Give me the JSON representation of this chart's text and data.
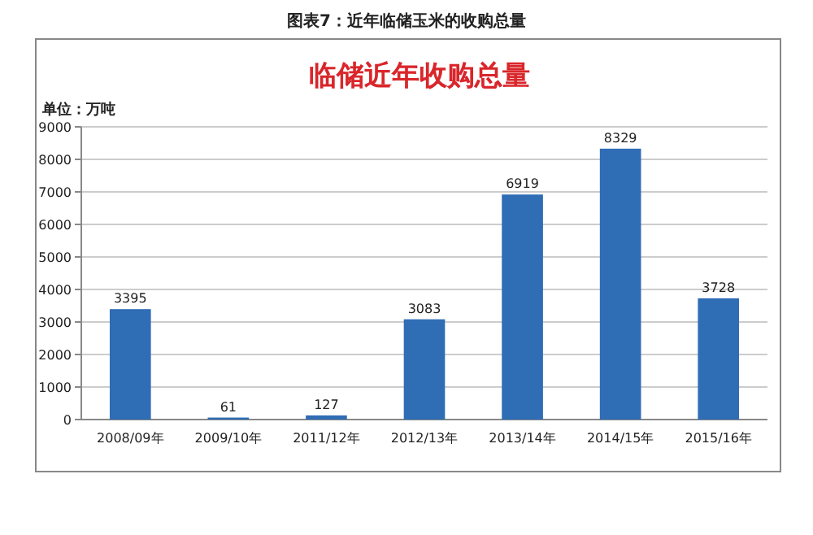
{
  "chart_data": {
    "type": "bar",
    "title": "图表7：近年临储玉米的收购总量",
    "subtitle": "临储近年收购总量",
    "ylabel": "单位：万吨",
    "categories": [
      "2008/09年",
      "2009/10年",
      "2011/12年",
      "2012/13年",
      "2013/14年",
      "2014/15年",
      "2015/16年"
    ],
    "values": [
      3395,
      61,
      127,
      3083,
      6919,
      8329,
      3728
    ],
    "color": "#2f6db5",
    "ylim": [
      0,
      9000
    ],
    "yticks": [
      0,
      1000,
      2000,
      3000,
      4000,
      5000,
      6000,
      7000,
      8000,
      9000
    ],
    "grid": "y",
    "data_labels": true
  }
}
